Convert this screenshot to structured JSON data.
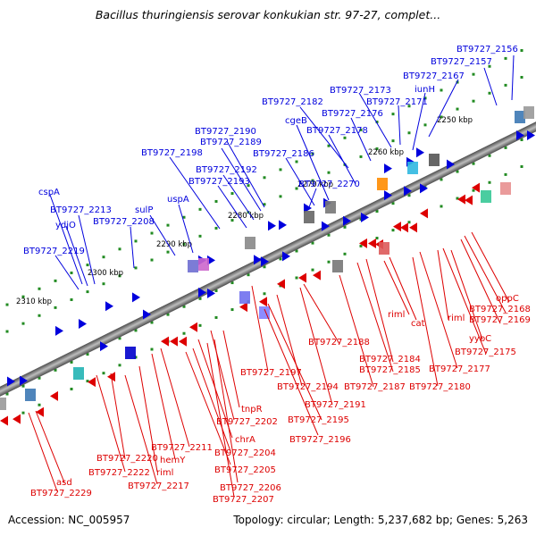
{
  "title": "Bacillus thuringiensis serovar konkukian str. 97-27, complet...",
  "footer": {
    "accession": "Accession: NC_005957",
    "summary": "Topology: circular; Length: 5,237,682 bp; Genes: 5,263"
  },
  "colors": {
    "forward": "#0000dd",
    "reverse": "#dd0000",
    "backbone": "#808080",
    "tick": "#228b22"
  },
  "kbp_labels": [
    "2250 kbp",
    "2260 kbp",
    "2270 kbp",
    "2280 kbp",
    "2290 kbp",
    "2300 kbp",
    "2310 kbp"
  ],
  "forward_genes": [
    "BT9727_2156",
    "BT9727_2157",
    "BT9727_2167",
    "iunH",
    "BT9727_2173",
    "BT9727_2171",
    "BT9727_2182",
    "BT9727_2176",
    "cgeB",
    "BT9727_2178",
    "BT9727_2190",
    "BT9727_2189",
    "BT9727_2198",
    "BT9727_2186",
    "BT9727_2192",
    "BT9727_2193",
    "BT9727_2270",
    "uspA",
    "sulP",
    "cspA",
    "BT9727_2213",
    "ydjO",
    "BT9727_2208",
    "BT9727_2219"
  ],
  "reverse_genes": [
    "oppC",
    "BT9727_2168",
    "BT9727_2169",
    "riml",
    "yybC",
    "cat",
    "BT9727_2175",
    "riml",
    "BT9727_2177",
    "BT9727_2188",
    "BT9727_2184",
    "BT9727_2185",
    "BT9727_2187",
    "BT9727_2180",
    "BT9727_2197",
    "BT9727_2194",
    "BT9727_2191",
    "BT9727_2195",
    "BT9727_2196",
    "tnpR",
    "BT9727_2202",
    "chrA",
    "BT9727_2204",
    "BT9727_2205",
    "BT9727_2206",
    "BT9727_2207",
    "BT9727_2211",
    "hemY",
    "BT9727_2220",
    "riml",
    "BT9727_2222",
    "BT9727_2217",
    "asd",
    "BT9727_2229"
  ]
}
